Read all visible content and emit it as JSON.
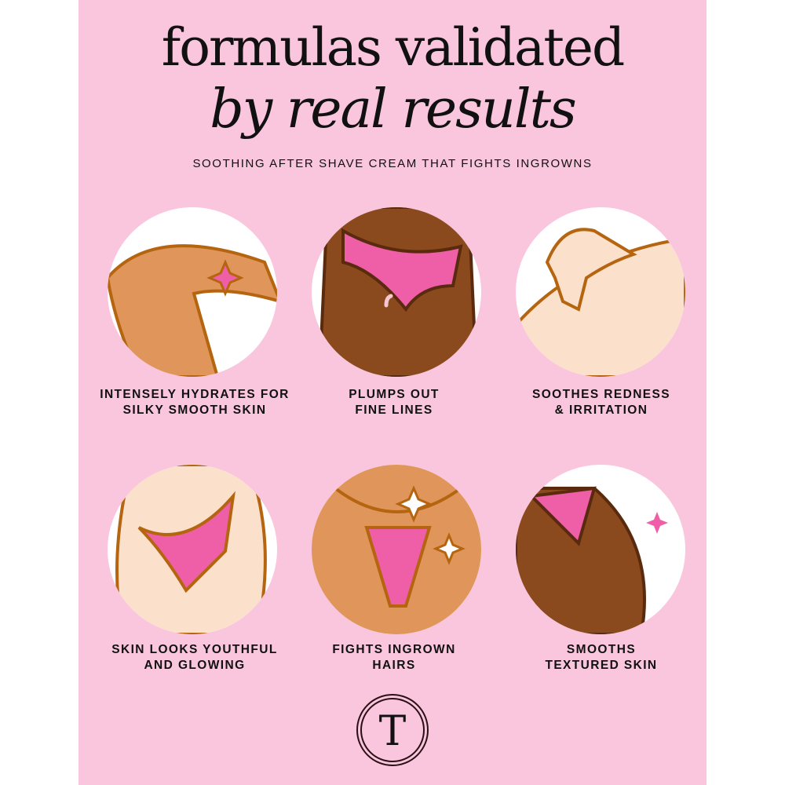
{
  "header": {
    "title_line1": "formulas validated",
    "title_line2": "by real results",
    "subtitle": "SOOTHING AFTER SHAVE CREAM THAT FIGHTS INGROWNS"
  },
  "benefits": [
    {
      "line1": "INTENSELY HYDRATES FOR",
      "line2": "SILKY SMOOTH SKIN",
      "icon": "legs-illustration"
    },
    {
      "line1": "PLUMPS OUT",
      "line2": "FINE LINES",
      "icon": "buttocks-illustration"
    },
    {
      "line1": "SOOTHES REDNESS",
      "line2": "& IRRITATION",
      "icon": "hand-on-leg-illustration"
    },
    {
      "line1": "SKIN LOOKS YOUTHFUL",
      "line2": "AND GLOWING",
      "icon": "hip-illustration"
    },
    {
      "line1": "FIGHTS INGROWN",
      "line2": "HAIRS",
      "icon": "bikini-area-illustration"
    },
    {
      "line1": "SMOOTHS",
      "line2": "TEXTURED SKIN",
      "icon": "thigh-illustration"
    }
  ],
  "logo": {
    "letter": "T"
  },
  "colors": {
    "background": "#f9c6dd",
    "accent_pink": "#ef5fa7",
    "outline": "#b5650f",
    "skin_tan": "#e0965a",
    "skin_dark": "#8b4a1e",
    "skin_light": "#fbe0cc"
  }
}
